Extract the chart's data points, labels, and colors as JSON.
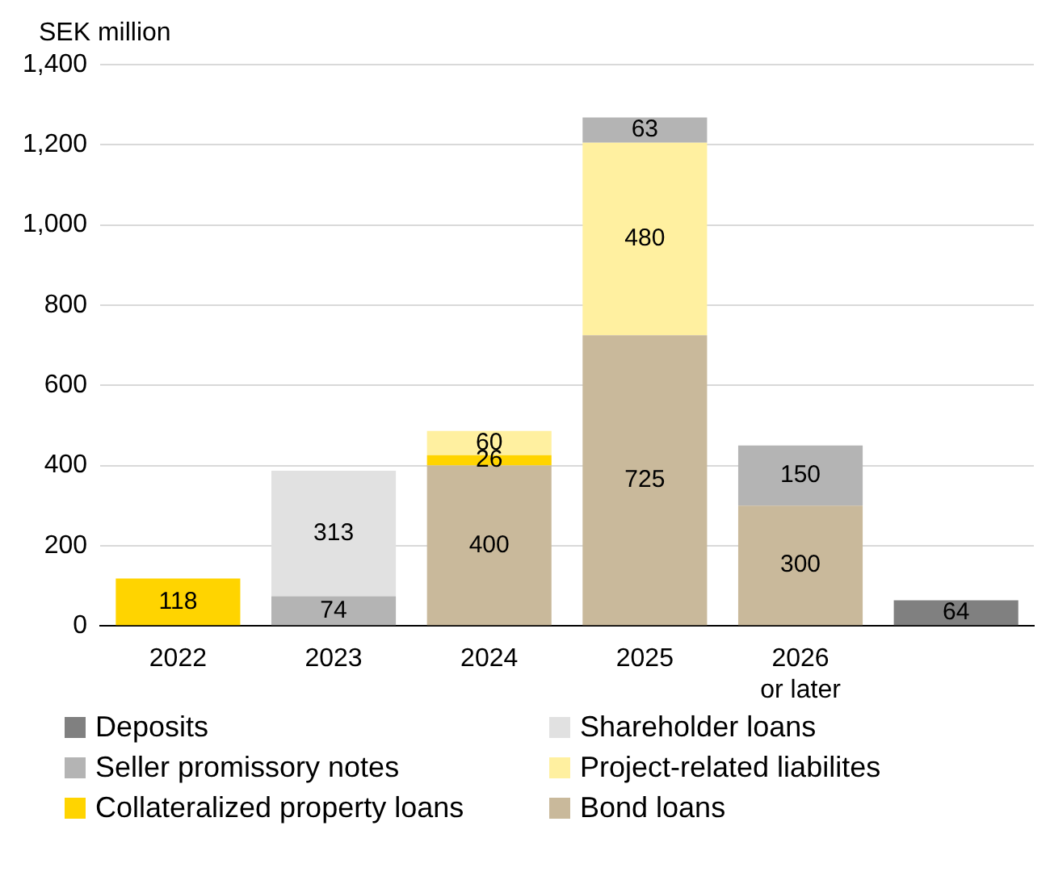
{
  "chart_data": {
    "type": "bar",
    "stacked": true,
    "ylabel": "SEK million",
    "categories": [
      "2022",
      "2023",
      "2024",
      "2025",
      "2026 or later",
      null
    ],
    "series": [
      {
        "name": "Bond loans",
        "color": "#c9b99b",
        "values": [
          null,
          null,
          400,
          725,
          300,
          null
        ]
      },
      {
        "name": "Collateralized property loans",
        "color": "#ffd400",
        "values": [
          118,
          null,
          26,
          null,
          null,
          null
        ]
      },
      {
        "name": "Project-related liabilites",
        "color": "#fff0a0",
        "values": [
          null,
          null,
          60,
          480,
          null,
          null
        ]
      },
      {
        "name": "Seller promissory notes",
        "color": "#b4b4b4",
        "values": [
          null,
          74,
          null,
          63,
          150,
          null
        ]
      },
      {
        "name": "Shareholder loans",
        "color": "#e1e1e1",
        "values": [
          null,
          313,
          null,
          null,
          null,
          null
        ]
      },
      {
        "name": "Deposits",
        "color": "#808080",
        "values": [
          null,
          null,
          null,
          null,
          null,
          64
        ]
      }
    ],
    "ylim": [
      0,
      1400
    ],
    "yticks": [
      0,
      200,
      400,
      600,
      800,
      {
        "value": 1000,
        "label": "1,000"
      },
      {
        "value": 1200,
        "label": "1,200"
      },
      {
        "value": 1400,
        "label": "1,400"
      }
    ],
    "grid": "y",
    "legend": "bottom",
    "data_labels": true
  }
}
